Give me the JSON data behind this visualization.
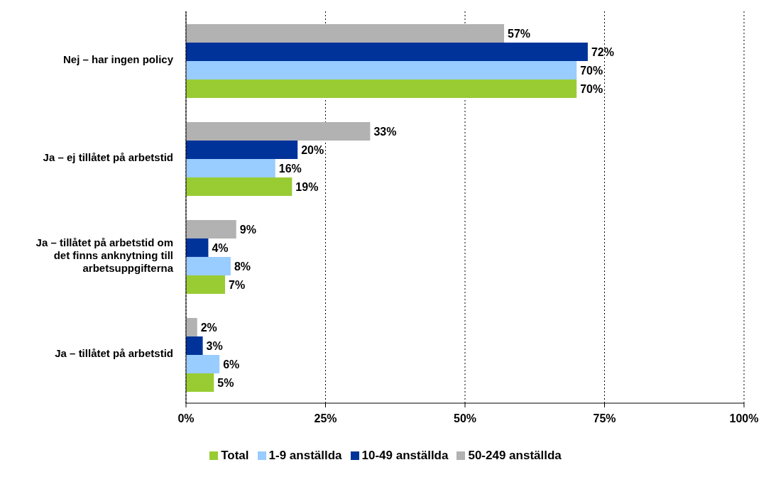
{
  "chart_data": {
    "type": "bar",
    "orientation": "horizontal",
    "categories": [
      "Nej – har ingen policy",
      "Ja – ej tillåtet på arbetstid",
      "Ja – tillåtet på arbetstid om det finns anknytning till arbetsuppgifterna",
      "Ja – tillåtet på arbetstid"
    ],
    "series": [
      {
        "name": "Total",
        "color": "#99cc33",
        "values": [
          70,
          19,
          7,
          5
        ],
        "value_labels": [
          "70%",
          "19%",
          "7%",
          "5%"
        ]
      },
      {
        "name": "1-9 anställda",
        "color": "#99ccff",
        "values": [
          70,
          16,
          8,
          6
        ],
        "value_labels": [
          "70%",
          "16%",
          "8%",
          "6%"
        ]
      },
      {
        "name": "10-49 anställda",
        "color": "#003399",
        "values": [
          72,
          20,
          4,
          3
        ],
        "value_labels": [
          "72%",
          "20%",
          "4%",
          "3%"
        ]
      },
      {
        "name": "50-249 anställda",
        "color": "#b2b2b2",
        "values": [
          57,
          33,
          9,
          2
        ],
        "value_labels": [
          "57%",
          "33%",
          "9%",
          "2%"
        ]
      }
    ],
    "xlim": [
      0,
      100
    ],
    "xticks": [
      {
        "value": 0,
        "label": "0%"
      },
      {
        "value": 25,
        "label": "25%"
      },
      {
        "value": 50,
        "label": "50%"
      },
      {
        "value": 75,
        "label": "75%"
      },
      {
        "value": 100,
        "label": "100%"
      }
    ],
    "grid": "x",
    "legend": "bottom"
  }
}
